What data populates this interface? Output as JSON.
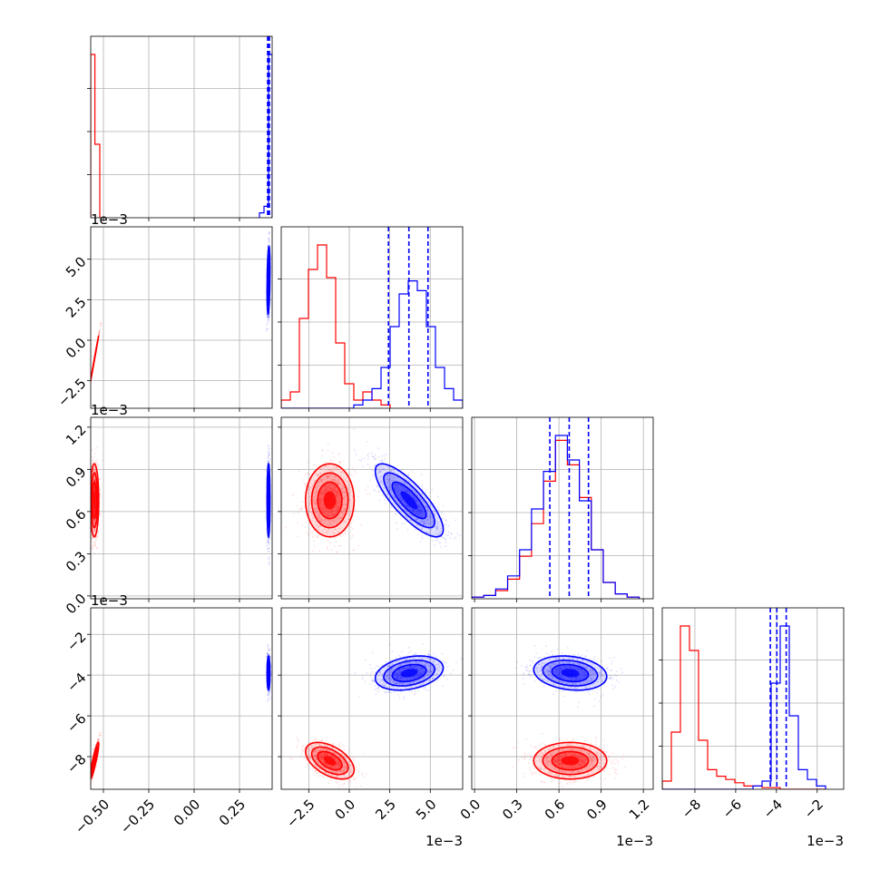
{
  "chart_data": {
    "type": "corner",
    "colors": {
      "red": "#ff0000",
      "blue": "#0000ff",
      "grid": "#b0b0b0"
    },
    "grid": true,
    "parameters": [
      {
        "range": [
          -0.57,
          0.43
        ],
        "ticks": [
          -0.5,
          -0.25,
          0.0,
          0.25
        ],
        "tick_labels": [
          "−0.50",
          "−0.25",
          "0.00",
          "0.25"
        ],
        "offset_label": ""
      },
      {
        "range": [
          -4.2,
          7.0
        ],
        "ticks": [
          -2.5,
          0.0,
          2.5,
          5.0
        ],
        "tick_labels": [
          "−2.5",
          "0.0",
          "2.5",
          "5.0"
        ],
        "offset_label": "1e−3"
      },
      {
        "range": [
          -0.02,
          1.27
        ],
        "ticks": [
          0.0,
          0.3,
          0.6,
          0.9,
          1.2
        ],
        "tick_labels": [
          "0.0",
          "0.3",
          "0.6",
          "0.9",
          "1.2"
        ],
        "offset_label": "1e−3"
      },
      {
        "range": [
          -9.6,
          -0.7
        ],
        "ticks": [
          -8,
          -6,
          -4,
          -2
        ],
        "tick_labels": [
          "−8",
          "−6",
          "−4",
          "−2"
        ],
        "offset_label": "1e−3"
      }
    ],
    "series": [
      {
        "color": "red",
        "centers": [
          -0.55,
          -1.2,
          0.68,
          -8.2
        ],
        "spreads": [
          0.012,
          0.75,
          0.13,
          0.45
        ],
        "correlations": [
          [
            0,
            1,
            0,
            0.9
          ],
          [
            0,
            0,
            0,
            -0.5
          ],
          [
            0,
            0,
            0,
            0.0
          ],
          [
            0,
            0,
            0,
            0
          ]
        ],
        "quantiles": null,
        "histograms": [
          {
            "edges": [
              -0.57,
              -0.547,
              -0.52
            ],
            "counts": [
              1.0,
              0.45
            ]
          },
          {
            "edges": [
              -4.2,
              -3.64,
              -3.08,
              -2.52,
              -1.96,
              -1.4,
              -0.84,
              -0.28,
              0.28,
              0.84,
              1.4,
              1.96,
              2.52
            ],
            "counts": [
              0.05,
              0.1,
              0.55,
              0.85,
              1.0,
              0.8,
              0.4,
              0.15,
              0.05,
              0.1,
              0.05,
              0.02
            ]
          },
          {
            "edges": [
              -0.02,
              0.065,
              0.15,
              0.235,
              0.32,
              0.405,
              0.49,
              0.575,
              0.66,
              0.745,
              0.83,
              0.915,
              1.0,
              1.085,
              1.17
            ],
            "counts": [
              0.01,
              0.02,
              0.05,
              0.12,
              0.26,
              0.46,
              0.72,
              0.97,
              0.82,
              0.62,
              0.3,
              0.1,
              0.03,
              0.01
            ]
          },
          {
            "edges": [
              -9.6,
              -9.155,
              -8.71,
              -8.265,
              -7.82,
              -7.375,
              -6.93,
              -6.485,
              -6.04,
              -5.595,
              -5.15,
              -4.705,
              -4.26,
              -3.815,
              -3.37,
              -2.925,
              -2.48,
              -2.035,
              -1.59
            ],
            "counts": [
              0.05,
              0.35,
              1.0,
              0.85,
              0.3,
              0.12,
              0.08,
              0.06,
              0.04,
              0.02,
              0.02,
              0.01,
              0.01,
              0.0,
              0.0,
              0.0,
              0.0,
              0.0
            ]
          }
        ]
      },
      {
        "color": "blue",
        "centers": [
          0.41,
          3.7,
          0.68,
          -3.9
        ],
        "spreads": [
          0.004,
          1.05,
          0.13,
          0.42
        ],
        "correlations": [
          [
            0,
            0.3,
            0,
            0
          ],
          [
            0,
            0,
            -0.8,
            0.3
          ],
          [
            0,
            0,
            0,
            -0.2
          ],
          [
            0,
            0,
            0,
            0
          ]
        ],
        "quantiles": [
          [
            0.405,
            0.41,
            0.415
          ],
          [
            2.42,
            3.68,
            4.86
          ],
          [
            0.535,
            0.673,
            0.81
          ],
          [
            -4.3,
            -3.98,
            -3.52
          ]
        ],
        "histograms": [
          {
            "edges": [
              0.36,
              0.385,
              0.41,
              0.43
            ],
            "counts": [
              0.03,
              0.07,
              1.0
            ]
          },
          {
            "edges": [
              -4.2,
              -3.64,
              -3.08,
              -2.52,
              -1.96,
              -1.4,
              -0.84,
              -0.28,
              0.28,
              0.84,
              1.4,
              1.96,
              2.52,
              3.08,
              3.64,
              4.2,
              4.76,
              5.32,
              5.88,
              6.44,
              7.0
            ],
            "counts": [
              0,
              0,
              0,
              0,
              0,
              0,
              0,
              0,
              0.02,
              0.05,
              0.12,
              0.25,
              0.5,
              0.7,
              0.78,
              0.72,
              0.5,
              0.25,
              0.12,
              0.05
            ]
          },
          {
            "edges": [
              -0.02,
              0.065,
              0.15,
              0.235,
              0.32,
              0.405,
              0.49,
              0.575,
              0.66,
              0.745,
              0.83,
              0.915,
              1.0,
              1.085,
              1.17
            ],
            "counts": [
              0.01,
              0.02,
              0.06,
              0.14,
              0.3,
              0.55,
              0.78,
              1.0,
              0.85,
              0.6,
              0.3,
              0.1,
              0.03,
              0.01
            ]
          },
          {
            "edges": [
              -9.6,
              -9.155,
              -8.71,
              -8.265,
              -7.82,
              -7.375,
              -6.93,
              -6.485,
              -6.04,
              -5.595,
              -5.15,
              -4.705,
              -4.26,
              -3.815,
              -3.37,
              -2.925,
              -2.48,
              -2.035,
              -1.59
            ],
            "counts": [
              0,
              0,
              0,
              0,
              0,
              0,
              0,
              0,
              0,
              0,
              0.02,
              0.05,
              0.65,
              1.0,
              0.45,
              0.12,
              0.06,
              0.02
            ]
          }
        ]
      }
    ]
  }
}
